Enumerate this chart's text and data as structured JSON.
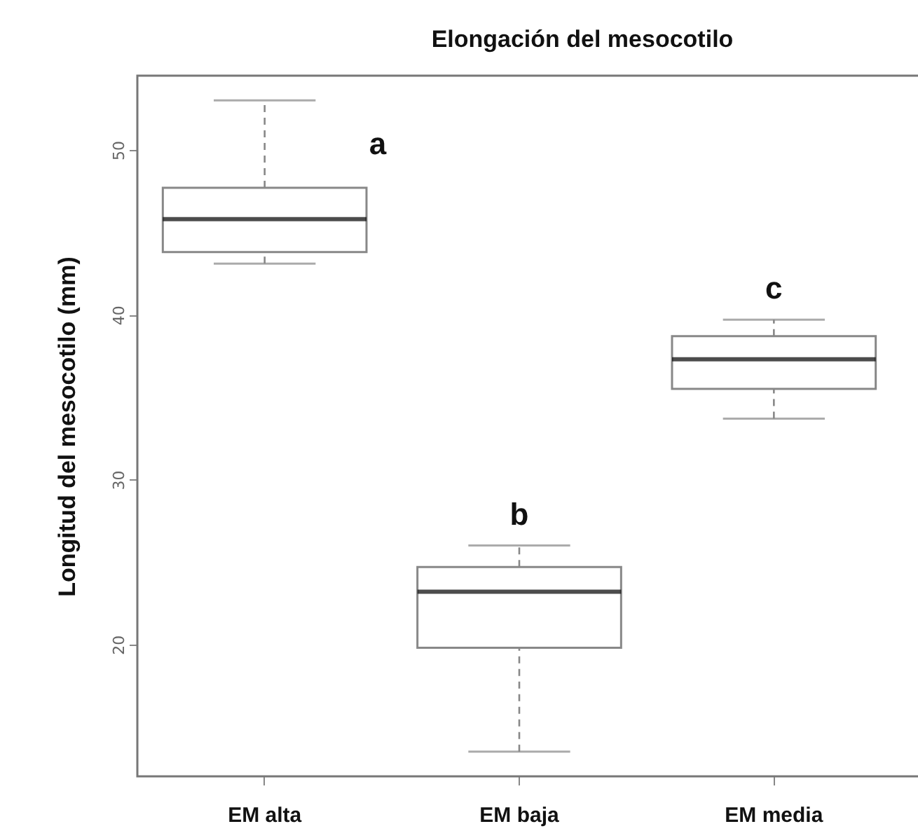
{
  "chart_data": {
    "type": "box",
    "title": "Elongación del mesocotilo",
    "ylabel": "Longitud del mesocotilo (mm)",
    "categories": [
      "EM alta",
      "EM baja",
      "EM media"
    ],
    "boxes": [
      {
        "low": 43.1,
        "q1": 43.8,
        "median": 45.8,
        "q3": 47.7,
        "high": 53.0
      },
      {
        "low": 13.5,
        "q1": 19.8,
        "median": 23.2,
        "q3": 24.7,
        "high": 26.0
      },
      {
        "low": 33.7,
        "q1": 35.5,
        "median": 37.3,
        "q3": 38.7,
        "high": 39.7
      }
    ],
    "ylim": [
      12,
      54.5
    ],
    "yticks": [
      20,
      30,
      40,
      50
    ],
    "grid": false,
    "annotations": [
      "a",
      "b",
      "c"
    ]
  }
}
